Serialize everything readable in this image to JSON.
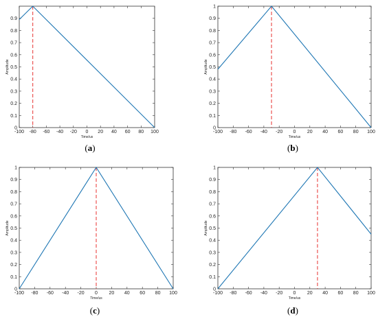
{
  "chart_data": [
    {
      "type": "line",
      "panel_label": "(a)",
      "peak_letter": "a",
      "xlabel": "Time/us",
      "ylabel": "Amplitude",
      "xlim": [
        -100,
        100
      ],
      "ylim": [
        0,
        1
      ],
      "xticks": [
        -100,
        -80,
        -60,
        -40,
        -20,
        0,
        20,
        40,
        60,
        80,
        100
      ],
      "yticks": [
        0,
        0.1,
        0.2,
        0.3,
        0.4,
        0.5,
        0.6,
        0.7,
        0.8,
        0.9
      ],
      "series": [
        {
          "x": [
            -100,
            -80,
            100
          ],
          "y": [
            0.89,
            1.0,
            0.0
          ],
          "color": "#1f77b4"
        }
      ],
      "peak_marker": {
        "x": -80,
        "color": "#e8302f",
        "style": "dashed"
      }
    },
    {
      "type": "line",
      "panel_label": "(b)",
      "peak_letter": "b",
      "xlabel": "Time/us",
      "ylabel": "Amplitude",
      "xlim": [
        -100,
        100
      ],
      "ylim": [
        0,
        1
      ],
      "xticks": [
        -100,
        -80,
        -60,
        -40,
        -20,
        0,
        20,
        40,
        60,
        80,
        100
      ],
      "yticks": [
        0,
        0.1,
        0.2,
        0.3,
        0.4,
        0.5,
        0.6,
        0.7,
        0.8,
        0.9,
        1
      ],
      "series": [
        {
          "x": [
            -100,
            -30,
            100
          ],
          "y": [
            0.48,
            1.0,
            0.0
          ],
          "color": "#1f77b4"
        }
      ],
      "peak_marker": {
        "x": -30,
        "color": "#e8302f",
        "style": "dashed"
      }
    },
    {
      "type": "line",
      "panel_label": "(c)",
      "peak_letter": "c",
      "xlabel": "Time/us",
      "ylabel": "Amplitude",
      "xlim": [
        -100,
        100
      ],
      "ylim": [
        0,
        1
      ],
      "xticks": [
        -100,
        -80,
        -60,
        -40,
        -20,
        0,
        20,
        40,
        60,
        80,
        100
      ],
      "yticks": [
        0,
        0.1,
        0.2,
        0.3,
        0.4,
        0.5,
        0.6,
        0.7,
        0.8,
        0.9,
        1
      ],
      "series": [
        {
          "x": [
            -100,
            0,
            100
          ],
          "y": [
            0.0,
            1.0,
            0.0
          ],
          "color": "#1f77b4"
        }
      ],
      "peak_marker": {
        "x": 0,
        "color": "#e8302f",
        "style": "dashed"
      }
    },
    {
      "type": "line",
      "panel_label": "(d)",
      "peak_letter": "d",
      "xlabel": "Time/us",
      "ylabel": "Amplitude",
      "xlim": [
        -100,
        100
      ],
      "ylim": [
        0,
        1
      ],
      "xticks": [
        -100,
        -80,
        -60,
        -40,
        -20,
        0,
        20,
        40,
        60,
        80,
        100
      ],
      "yticks": [
        0,
        0.1,
        0.2,
        0.3,
        0.4,
        0.5,
        0.6,
        0.7,
        0.8,
        0.9,
        1
      ],
      "series": [
        {
          "x": [
            -100,
            30,
            100
          ],
          "y": [
            0.0,
            1.0,
            0.45
          ],
          "color": "#1f77b4"
        }
      ],
      "peak_marker": {
        "x": 30,
        "color": "#e8302f",
        "style": "dashed"
      }
    }
  ]
}
